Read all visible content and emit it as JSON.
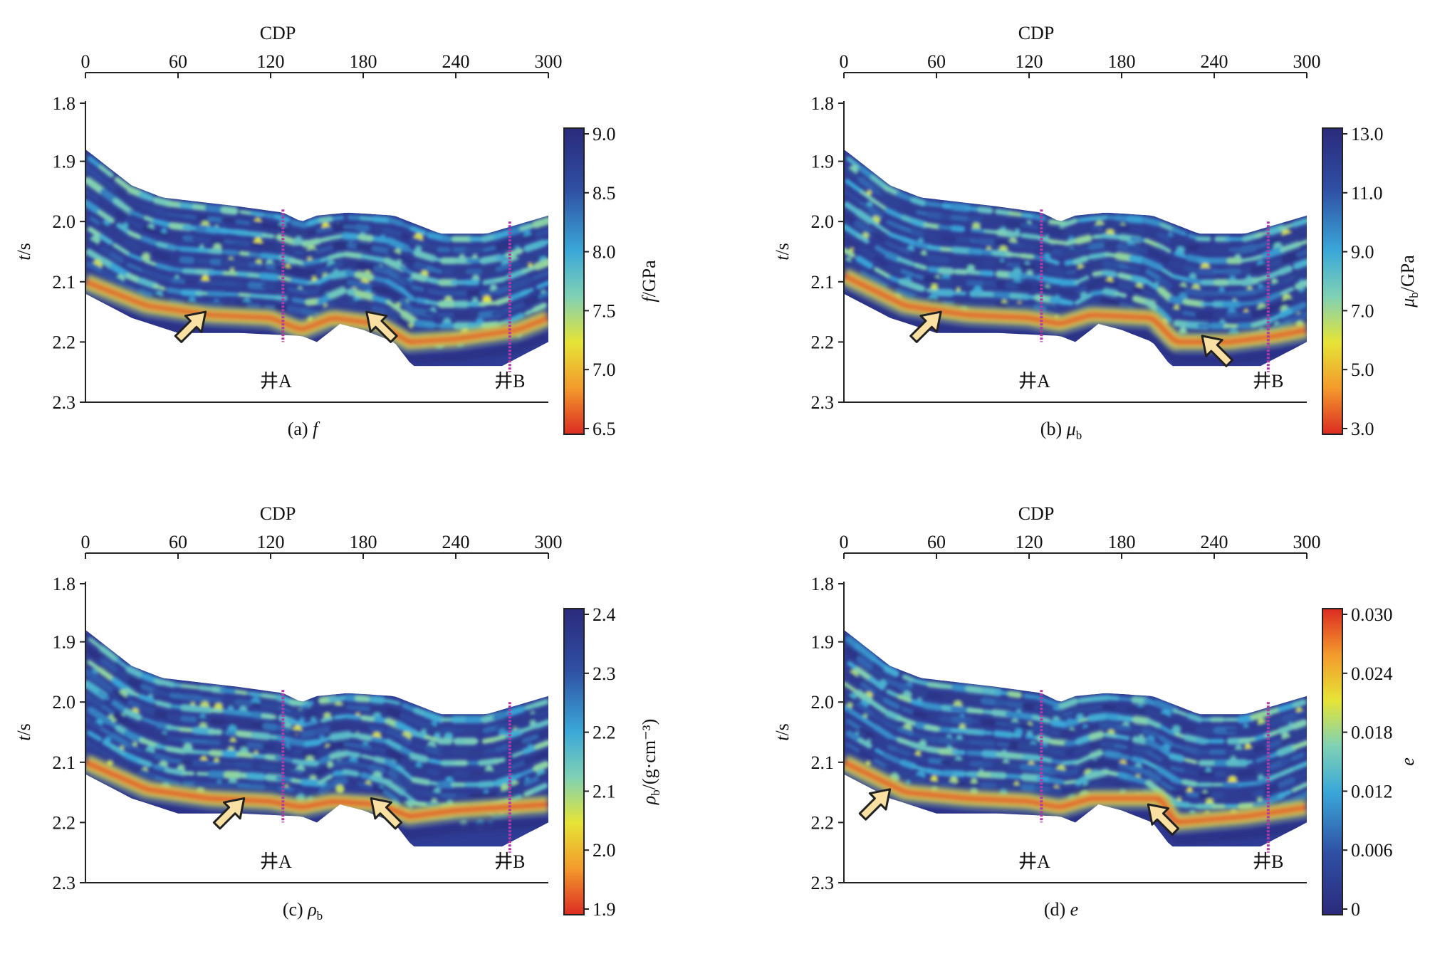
{
  "chart_data": [
    {
      "type": "heatmap",
      "panel_label": "(a)",
      "panel_symbol": "f",
      "panel_symbol_sub": "",
      "x_axis_title": "CDP",
      "y_axis_title_var": "t",
      "y_axis_title_unit": "/s",
      "x_ticks": [
        "0",
        "60",
        "120",
        "180",
        "240",
        "300"
      ],
      "xlim": [
        0,
        300
      ],
      "y_ticks": [
        "1.8",
        "1.9",
        "2.0",
        "2.1",
        "2.2",
        "2.3"
      ],
      "ylim": [
        1.8,
        2.3
      ],
      "colorbar_title_var": "f",
      "colorbar_title_sub": "",
      "colorbar_title_unit": "/GPa",
      "colorbar_ticks": [
        "9.0",
        "8.5",
        "8.0",
        "7.5",
        "7.0",
        "6.5"
      ],
      "colorbar_range": [
        6.5,
        9.0
      ],
      "colormap": "jet_reversed",
      "wells": [
        {
          "name": "井A",
          "cdp": 128,
          "t_start": 1.98,
          "t_end": 2.2
        },
        {
          "name": "井B",
          "cdp": 275,
          "t_start": 2.0,
          "t_end": 2.25
        }
      ],
      "arrows": [
        {
          "cdp": 70,
          "t": 2.17,
          "direction": "up-right"
        },
        {
          "cdp": 190,
          "t": 2.17,
          "direction": "up-left"
        }
      ],
      "top_horizon": [
        [
          0,
          1.88
        ],
        [
          30,
          1.94
        ],
        [
          50,
          1.96
        ],
        [
          100,
          1.975
        ],
        [
          128,
          1.985
        ],
        [
          140,
          2.0
        ],
        [
          150,
          1.99
        ],
        [
          170,
          1.985
        ],
        [
          200,
          1.99
        ],
        [
          230,
          2.02
        ],
        [
          260,
          2.02
        ],
        [
          300,
          1.99
        ]
      ],
      "bottom_horizon": [
        [
          0,
          2.12
        ],
        [
          30,
          2.16
        ],
        [
          60,
          2.185
        ],
        [
          100,
          2.185
        ],
        [
          140,
          2.19
        ],
        [
          150,
          2.2
        ],
        [
          165,
          2.17
        ],
        [
          180,
          2.18
        ],
        [
          200,
          2.2
        ],
        [
          212,
          2.24
        ],
        [
          240,
          2.24
        ],
        [
          270,
          2.24
        ],
        [
          300,
          2.2
        ]
      ],
      "bright_band": [
        [
          0,
          2.1
        ],
        [
          40,
          2.14
        ],
        [
          80,
          2.155
        ],
        [
          120,
          2.16
        ],
        [
          140,
          2.18
        ],
        [
          160,
          2.16
        ],
        [
          190,
          2.17
        ],
        [
          210,
          2.2
        ],
        [
          240,
          2.195
        ],
        [
          280,
          2.18
        ],
        [
          300,
          2.16
        ]
      ],
      "bright_band_intensity": 0.9
    },
    {
      "type": "heatmap",
      "panel_label": "(b)",
      "panel_symbol": "μ",
      "panel_symbol_sub": "b",
      "x_axis_title": "CDP",
      "y_axis_title_var": "t",
      "y_axis_title_unit": "/s",
      "x_ticks": [
        "0",
        "60",
        "120",
        "180",
        "240",
        "300"
      ],
      "xlim": [
        0,
        300
      ],
      "y_ticks": [
        "1.8",
        "1.9",
        "2.0",
        "2.1",
        "2.2",
        "2.3"
      ],
      "ylim": [
        1.8,
        2.3
      ],
      "colorbar_title_var": "μ",
      "colorbar_title_sub": "b",
      "colorbar_title_unit": "/GPa",
      "colorbar_ticks": [
        "13.0",
        "11.0",
        "9.0",
        "7.0",
        "5.0",
        "3.0"
      ],
      "colorbar_range": [
        3.0,
        13.0
      ],
      "colormap": "jet_reversed",
      "wells": [
        {
          "name": "井A",
          "cdp": 128,
          "t_start": 1.98,
          "t_end": 2.2
        },
        {
          "name": "井B",
          "cdp": 275,
          "t_start": 2.0,
          "t_end": 2.25
        }
      ],
      "arrows": [
        {
          "cdp": 55,
          "t": 2.17,
          "direction": "up-right"
        },
        {
          "cdp": 240,
          "t": 2.21,
          "direction": "up-left"
        }
      ],
      "top_horizon": [
        [
          0,
          1.88
        ],
        [
          30,
          1.94
        ],
        [
          50,
          1.96
        ],
        [
          100,
          1.975
        ],
        [
          128,
          1.985
        ],
        [
          140,
          2.0
        ],
        [
          150,
          1.99
        ],
        [
          170,
          1.985
        ],
        [
          200,
          1.99
        ],
        [
          230,
          2.02
        ],
        [
          260,
          2.02
        ],
        [
          300,
          1.99
        ]
      ],
      "bottom_horizon": [
        [
          0,
          2.12
        ],
        [
          30,
          2.16
        ],
        [
          60,
          2.185
        ],
        [
          100,
          2.185
        ],
        [
          140,
          2.19
        ],
        [
          150,
          2.2
        ],
        [
          165,
          2.17
        ],
        [
          180,
          2.18
        ],
        [
          200,
          2.2
        ],
        [
          212,
          2.24
        ],
        [
          240,
          2.24
        ],
        [
          270,
          2.24
        ],
        [
          300,
          2.2
        ]
      ],
      "bright_band": [
        [
          0,
          2.09
        ],
        [
          40,
          2.14
        ],
        [
          80,
          2.155
        ],
        [
          120,
          2.16
        ],
        [
          140,
          2.17
        ],
        [
          160,
          2.155
        ],
        [
          200,
          2.16
        ],
        [
          215,
          2.2
        ],
        [
          250,
          2.2
        ],
        [
          280,
          2.19
        ],
        [
          300,
          2.18
        ]
      ],
      "bright_band_intensity": 0.95
    },
    {
      "type": "heatmap",
      "panel_label": "(c)",
      "panel_symbol": "ρ",
      "panel_symbol_sub": "b",
      "x_axis_title": "CDP",
      "y_axis_title_var": "t",
      "y_axis_title_unit": "/s",
      "x_ticks": [
        "0",
        "60",
        "120",
        "180",
        "240",
        "300"
      ],
      "xlim": [
        0,
        300
      ],
      "y_ticks": [
        "1.8",
        "1.9",
        "2.0",
        "2.1",
        "2.2",
        "2.3"
      ],
      "ylim": [
        1.8,
        2.3
      ],
      "colorbar_title_var": "ρ",
      "colorbar_title_sub": "b",
      "colorbar_title_unit": "/(g·cm⁻³)",
      "colorbar_ticks": [
        "2.4",
        "2.3",
        "2.2",
        "2.1",
        "2.0",
        "1.9"
      ],
      "colorbar_range": [
        1.9,
        2.4
      ],
      "colormap": "jet_reversed",
      "wells": [
        {
          "name": "井A",
          "cdp": 128,
          "t_start": 1.98,
          "t_end": 2.2
        },
        {
          "name": "井B",
          "cdp": 275,
          "t_start": 2.0,
          "t_end": 2.25
        }
      ],
      "arrows": [
        {
          "cdp": 95,
          "t": 2.18,
          "direction": "up-right"
        },
        {
          "cdp": 193,
          "t": 2.18,
          "direction": "up-left"
        }
      ],
      "top_horizon": [
        [
          0,
          1.88
        ],
        [
          30,
          1.94
        ],
        [
          50,
          1.96
        ],
        [
          100,
          1.975
        ],
        [
          128,
          1.985
        ],
        [
          140,
          2.0
        ],
        [
          150,
          1.99
        ],
        [
          170,
          1.985
        ],
        [
          200,
          1.99
        ],
        [
          230,
          2.02
        ],
        [
          260,
          2.02
        ],
        [
          300,
          1.99
        ]
      ],
      "bottom_horizon": [
        [
          0,
          2.12
        ],
        [
          30,
          2.16
        ],
        [
          60,
          2.185
        ],
        [
          100,
          2.185
        ],
        [
          140,
          2.19
        ],
        [
          150,
          2.2
        ],
        [
          165,
          2.17
        ],
        [
          180,
          2.18
        ],
        [
          200,
          2.2
        ],
        [
          212,
          2.24
        ],
        [
          240,
          2.24
        ],
        [
          270,
          2.24
        ],
        [
          300,
          2.2
        ]
      ],
      "bright_band": [
        [
          0,
          2.1
        ],
        [
          40,
          2.145
        ],
        [
          80,
          2.16
        ],
        [
          120,
          2.165
        ],
        [
          140,
          2.175
        ],
        [
          160,
          2.165
        ],
        [
          190,
          2.17
        ],
        [
          210,
          2.19
        ],
        [
          240,
          2.18
        ],
        [
          300,
          2.17
        ]
      ],
      "bright_band_intensity": 1.0
    },
    {
      "type": "heatmap",
      "panel_label": "(d)",
      "panel_symbol": "e",
      "panel_symbol_sub": "",
      "x_axis_title": "CDP",
      "y_axis_title_var": "t",
      "y_axis_title_unit": "/s",
      "x_ticks": [
        "0",
        "60",
        "120",
        "180",
        "240",
        "300"
      ],
      "xlim": [
        0,
        300
      ],
      "y_ticks": [
        "1.8",
        "1.9",
        "2.0",
        "2.1",
        "2.2",
        "2.3"
      ],
      "ylim": [
        1.8,
        2.3
      ],
      "colorbar_title_var": "e",
      "colorbar_title_sub": "",
      "colorbar_title_unit": "",
      "colorbar_ticks": [
        "0.030",
        "0.024",
        "0.018",
        "0.012",
        "0.006",
        "0"
      ],
      "colorbar_range": [
        0,
        0.03
      ],
      "colormap": "jet",
      "wells": [
        {
          "name": "井A",
          "cdp": 128,
          "t_start": 1.98,
          "t_end": 2.2
        },
        {
          "name": "井B",
          "cdp": 275,
          "t_start": 2.0,
          "t_end": 2.25
        }
      ],
      "arrows": [
        {
          "cdp": 22,
          "t": 2.165,
          "direction": "up-right"
        },
        {
          "cdp": 205,
          "t": 2.19,
          "direction": "up-left"
        }
      ],
      "top_horizon": [
        [
          0,
          1.88
        ],
        [
          30,
          1.94
        ],
        [
          50,
          1.96
        ],
        [
          100,
          1.975
        ],
        [
          128,
          1.985
        ],
        [
          140,
          2.0
        ],
        [
          150,
          1.99
        ],
        [
          170,
          1.985
        ],
        [
          200,
          1.99
        ],
        [
          230,
          2.02
        ],
        [
          260,
          2.02
        ],
        [
          300,
          1.99
        ]
      ],
      "bottom_horizon": [
        [
          0,
          2.12
        ],
        [
          30,
          2.16
        ],
        [
          60,
          2.185
        ],
        [
          100,
          2.185
        ],
        [
          140,
          2.19
        ],
        [
          150,
          2.2
        ],
        [
          165,
          2.17
        ],
        [
          180,
          2.18
        ],
        [
          200,
          2.2
        ],
        [
          212,
          2.24
        ],
        [
          240,
          2.24
        ],
        [
          270,
          2.24
        ],
        [
          300,
          2.2
        ]
      ],
      "bright_band": [
        [
          0,
          2.1
        ],
        [
          40,
          2.15
        ],
        [
          80,
          2.16
        ],
        [
          120,
          2.165
        ],
        [
          140,
          2.175
        ],
        [
          160,
          2.16
        ],
        [
          205,
          2.16
        ],
        [
          215,
          2.2
        ],
        [
          260,
          2.19
        ],
        [
          300,
          2.175
        ]
      ],
      "bright_band_intensity": 0.95
    }
  ]
}
